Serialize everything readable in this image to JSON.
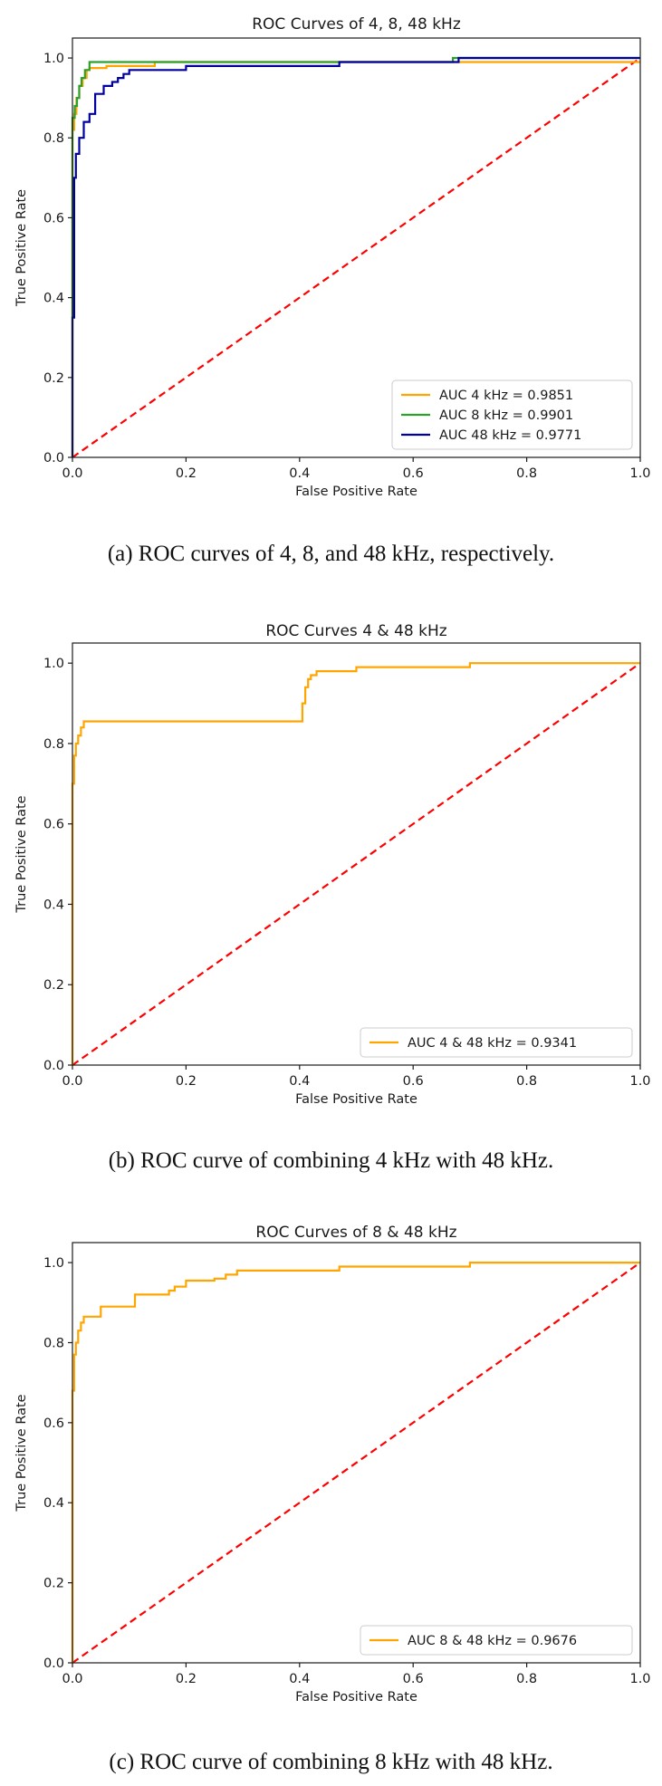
{
  "chart_data": [
    {
      "type": "line",
      "title": "ROC Curves of 4, 8, 48 kHz",
      "xlabel": "False Positive Rate",
      "ylabel": "True Positive Rate",
      "xlim": [
        0,
        1
      ],
      "ylim": [
        0,
        1.05
      ],
      "xticks": [
        "0.0",
        "0.2",
        "0.4",
        "0.6",
        "0.8",
        "1.0"
      ],
      "yticks": [
        "0.0",
        "0.2",
        "0.4",
        "0.6",
        "0.8",
        "1.0"
      ],
      "grid": false,
      "legend_position": "lower-right",
      "caption": "(a) ROC curves of 4, 8, and 48 kHz, respectively.",
      "series": [
        {
          "name": "AUC 4 kHz = 0.9851",
          "color": "#ffa500",
          "x": [
            0,
            0,
            0.003,
            0.003,
            0.007,
            0.007,
            0.012,
            0.012,
            0.018,
            0.018,
            0.025,
            0.025,
            0.03,
            0.03,
            0.06,
            0.06,
            0.145,
            0.145,
            0.47,
            0.47,
            1.0
          ],
          "y": [
            0,
            0.82,
            0.82,
            0.86,
            0.86,
            0.9,
            0.9,
            0.93,
            0.93,
            0.95,
            0.95,
            0.97,
            0.97,
            0.975,
            0.975,
            0.98,
            0.98,
            0.99,
            0.99,
            0.99,
            0.99
          ]
        },
        {
          "name": "AUC 8 kHz = 0.9901",
          "color": "#2ca02c",
          "x": [
            0,
            0,
            0.004,
            0.004,
            0.008,
            0.008,
            0.012,
            0.012,
            0.016,
            0.016,
            0.022,
            0.022,
            0.03,
            0.03,
            0.47,
            0.47,
            0.67,
            0.67,
            1.0
          ],
          "y": [
            0,
            0.85,
            0.85,
            0.88,
            0.88,
            0.9,
            0.9,
            0.93,
            0.93,
            0.95,
            0.95,
            0.97,
            0.97,
            0.99,
            0.99,
            0.99,
            0.99,
            1.0,
            1.0
          ]
        },
        {
          "name": "AUC 48 kHz = 0.9771",
          "color": "#0000a0",
          "x": [
            0,
            0,
            0.003,
            0.003,
            0.006,
            0.006,
            0.012,
            0.012,
            0.02,
            0.02,
            0.03,
            0.03,
            0.04,
            0.04,
            0.055,
            0.055,
            0.07,
            0.07,
            0.08,
            0.08,
            0.09,
            0.09,
            0.1,
            0.1,
            0.2,
            0.2,
            0.47,
            0.47,
            0.68,
            0.68,
            1.0
          ],
          "y": [
            0,
            0.35,
            0.35,
            0.7,
            0.7,
            0.76,
            0.76,
            0.8,
            0.8,
            0.84,
            0.84,
            0.86,
            0.86,
            0.91,
            0.91,
            0.93,
            0.93,
            0.94,
            0.94,
            0.95,
            0.95,
            0.96,
            0.96,
            0.97,
            0.97,
            0.98,
            0.98,
            0.99,
            0.99,
            1.0,
            1.0
          ]
        },
        {
          "name": "chance",
          "color": "#ff0000",
          "dashed": true,
          "in_legend": false,
          "x": [
            0,
            1
          ],
          "y": [
            0,
            1
          ]
        }
      ]
    },
    {
      "type": "line",
      "title": "ROC Curves 4 & 48 kHz",
      "xlabel": "False Positive Rate",
      "ylabel": "True Positive Rate",
      "xlim": [
        0,
        1
      ],
      "ylim": [
        0,
        1.05
      ],
      "xticks": [
        "0.0",
        "0.2",
        "0.4",
        "0.6",
        "0.8",
        "1.0"
      ],
      "yticks": [
        "0.0",
        "0.2",
        "0.4",
        "0.6",
        "0.8",
        "1.0"
      ],
      "grid": false,
      "legend_position": "lower-right",
      "caption": "(b) ROC curve of combining 4 kHz with 48 kHz.",
      "series": [
        {
          "name": "AUC 4 & 48 kHz = 0.9341",
          "color": "#ffa500",
          "x": [
            0,
            0,
            0.003,
            0.003,
            0.006,
            0.006,
            0.01,
            0.01,
            0.015,
            0.015,
            0.02,
            0.02,
            0.405,
            0.405,
            0.41,
            0.41,
            0.415,
            0.415,
            0.42,
            0.42,
            0.43,
            0.43,
            0.5,
            0.5,
            0.7,
            0.7,
            1.0
          ],
          "y": [
            0,
            0.7,
            0.7,
            0.77,
            0.77,
            0.8,
            0.8,
            0.82,
            0.82,
            0.84,
            0.84,
            0.855,
            0.855,
            0.9,
            0.9,
            0.94,
            0.94,
            0.96,
            0.96,
            0.97,
            0.97,
            0.98,
            0.98,
            0.99,
            0.99,
            1.0,
            1.0
          ]
        },
        {
          "name": "chance",
          "color": "#ff0000",
          "dashed": true,
          "in_legend": false,
          "x": [
            0,
            1
          ],
          "y": [
            0,
            1
          ]
        }
      ]
    },
    {
      "type": "line",
      "title": "ROC Curves of 8 & 48 kHz",
      "xlabel": "False Positive Rate",
      "ylabel": "True Positive Rate",
      "xlim": [
        0,
        1
      ],
      "ylim": [
        0,
        1.05
      ],
      "xticks": [
        "0.0",
        "0.2",
        "0.4",
        "0.6",
        "0.8",
        "1.0"
      ],
      "yticks": [
        "0.0",
        "0.2",
        "0.4",
        "0.6",
        "0.8",
        "1.0"
      ],
      "grid": false,
      "legend_position": "lower-right",
      "caption": "(c) ROC curve of combining 8 kHz with 48 kHz.",
      "series": [
        {
          "name": "AUC 8 & 48 kHz = 0.9676",
          "color": "#ffa500",
          "x": [
            0,
            0,
            0.003,
            0.003,
            0.006,
            0.006,
            0.01,
            0.01,
            0.015,
            0.015,
            0.02,
            0.02,
            0.05,
            0.05,
            0.11,
            0.11,
            0.17,
            0.17,
            0.18,
            0.18,
            0.2,
            0.2,
            0.25,
            0.25,
            0.27,
            0.27,
            0.29,
            0.29,
            0.47,
            0.47,
            0.7,
            0.7,
            1.0
          ],
          "y": [
            0,
            0.68,
            0.68,
            0.77,
            0.77,
            0.8,
            0.8,
            0.83,
            0.83,
            0.85,
            0.85,
            0.865,
            0.865,
            0.89,
            0.89,
            0.92,
            0.92,
            0.93,
            0.93,
            0.94,
            0.94,
            0.955,
            0.955,
            0.96,
            0.96,
            0.97,
            0.97,
            0.98,
            0.98,
            0.99,
            0.99,
            1.0,
            1.0
          ]
        },
        {
          "name": "chance",
          "color": "#ff0000",
          "dashed": true,
          "in_legend": false,
          "x": [
            0,
            1
          ],
          "y": [
            0,
            1
          ]
        }
      ]
    }
  ]
}
